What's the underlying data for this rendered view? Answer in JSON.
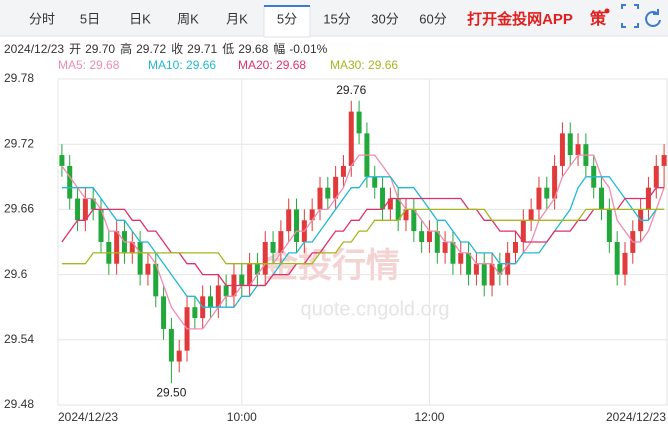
{
  "ui": {
    "tabs": [
      "分时",
      "5日",
      "日K",
      "周K",
      "月K",
      "5分",
      "15分",
      "30分",
      "60分"
    ],
    "active_tab": 5,
    "brand": "打开金投网APP",
    "icon": "策",
    "info": [
      {
        "label": "2024/12/23"
      },
      {
        "label": "开"
      },
      {
        "label": "29.70"
      },
      {
        "label": "高"
      },
      {
        "label": "29.72"
      },
      {
        "label": "收"
      },
      {
        "label": "29.71"
      },
      {
        "label": "低"
      },
      {
        "label": "29.68"
      },
      {
        "label": "幅"
      },
      {
        "label": "-0.01%"
      }
    ],
    "watermark": [
      "金投行情",
      "quote.cngold.org"
    ]
  },
  "chart_data": {
    "type": "candlestick",
    "categories": [
      "2024/12/23",
      null,
      null,
      null,
      null,
      null,
      null,
      null,
      null,
      null,
      null,
      null,
      null,
      null,
      null,
      null,
      null,
      null,
      null,
      null,
      null,
      null,
      null,
      "10:00",
      null,
      null,
      null,
      null,
      null,
      null,
      null,
      null,
      null,
      null,
      null,
      null,
      null,
      null,
      null,
      null,
      null,
      null,
      null,
      null,
      null,
      null,
      null,
      "12:00",
      null,
      null,
      null,
      null,
      null,
      null,
      null,
      null,
      null,
      null,
      null,
      null,
      null,
      null,
      null,
      null,
      null,
      null,
      null,
      null,
      null,
      null,
      null,
      null,
      null,
      null,
      null,
      null,
      null,
      "2024/12/23"
    ],
    "open": [
      29.71,
      29.7,
      29.67,
      29.65,
      29.67,
      29.66,
      29.63,
      29.61,
      29.64,
      29.62,
      29.63,
      29.6,
      29.61,
      29.58,
      29.55,
      29.52,
      29.53,
      29.57,
      29.56,
      29.58,
      29.57,
      29.59,
      29.58,
      29.6,
      29.59,
      29.61,
      29.6,
      29.63,
      29.62,
      29.64,
      29.66,
      29.63,
      29.65,
      29.66,
      29.68,
      29.67,
      29.69,
      29.7,
      29.75,
      29.73,
      29.69,
      29.68,
      29.66,
      29.67,
      29.65,
      29.66,
      29.64,
      29.63,
      29.64,
      29.62,
      29.63,
      29.61,
      29.62,
      29.6,
      29.61,
      29.59,
      29.61,
      29.6,
      29.62,
      29.63,
      29.65,
      29.66,
      29.68,
      29.67,
      29.7,
      29.73,
      29.71,
      29.72,
      29.7,
      29.68,
      29.66,
      29.63,
      29.6,
      29.62,
      29.64,
      29.66,
      29.68,
      29.7
    ],
    "high": [
      29.72,
      29.71,
      29.68,
      29.68,
      29.68,
      29.67,
      29.64,
      29.65,
      29.65,
      29.64,
      29.64,
      29.62,
      29.62,
      29.59,
      29.56,
      29.54,
      29.58,
      29.58,
      29.59,
      29.59,
      29.6,
      29.6,
      29.61,
      29.61,
      29.62,
      29.62,
      29.64,
      29.64,
      29.65,
      29.67,
      29.67,
      29.66,
      29.67,
      29.69,
      29.69,
      29.7,
      29.71,
      29.76,
      29.76,
      29.74,
      29.7,
      29.69,
      29.68,
      29.68,
      29.67,
      29.67,
      29.65,
      29.65,
      29.65,
      29.64,
      29.64,
      29.63,
      29.63,
      29.62,
      29.62,
      29.62,
      29.62,
      29.63,
      29.64,
      29.66,
      29.67,
      29.69,
      29.69,
      29.71,
      29.74,
      29.74,
      29.73,
      29.73,
      29.71,
      29.69,
      29.67,
      29.64,
      29.63,
      29.65,
      29.67,
      29.69,
      29.71,
      29.72
    ],
    "low": [
      29.69,
      29.66,
      29.64,
      29.64,
      29.65,
      29.62,
      29.6,
      29.6,
      29.61,
      29.61,
      29.59,
      29.59,
      29.57,
      29.54,
      29.5,
      29.51,
      29.52,
      29.55,
      29.55,
      29.56,
      29.56,
      29.57,
      29.57,
      29.58,
      29.58,
      29.59,
      29.59,
      29.61,
      29.61,
      29.63,
      29.62,
      29.62,
      29.64,
      29.65,
      29.66,
      29.66,
      29.68,
      29.69,
      29.72,
      29.68,
      29.67,
      29.65,
      29.65,
      29.64,
      29.64,
      29.63,
      29.62,
      29.62,
      29.61,
      29.61,
      29.6,
      29.6,
      29.59,
      29.59,
      29.58,
      29.58,
      29.59,
      29.59,
      29.61,
      29.62,
      29.64,
      29.65,
      29.66,
      29.66,
      29.69,
      29.7,
      29.7,
      29.69,
      29.67,
      29.65,
      29.62,
      29.59,
      29.59,
      29.61,
      29.63,
      29.65,
      29.67,
      29.68
    ],
    "close": [
      29.7,
      29.67,
      29.65,
      29.67,
      29.66,
      29.63,
      29.61,
      29.64,
      29.62,
      29.63,
      29.6,
      29.61,
      29.58,
      29.55,
      29.52,
      29.53,
      29.57,
      29.56,
      29.58,
      29.57,
      29.59,
      29.58,
      29.6,
      29.59,
      29.61,
      29.6,
      29.63,
      29.62,
      29.64,
      29.66,
      29.63,
      29.65,
      29.66,
      29.68,
      29.67,
      29.69,
      29.7,
      29.75,
      29.73,
      29.69,
      29.68,
      29.66,
      29.67,
      29.65,
      29.66,
      29.64,
      29.63,
      29.64,
      29.62,
      29.63,
      29.61,
      29.62,
      29.6,
      29.61,
      29.59,
      29.61,
      29.6,
      29.62,
      29.63,
      29.65,
      29.66,
      29.68,
      29.67,
      29.7,
      29.73,
      29.71,
      29.72,
      29.7,
      29.68,
      29.66,
      29.63,
      29.6,
      29.62,
      29.64,
      29.66,
      29.68,
      29.7,
      29.71
    ],
    "up_color": "#e23a3a",
    "down_color": "#22a83a",
    "high_label": "29.76",
    "low_label": "29.50",
    "series": [
      {
        "name": "MA5: 29.68",
        "color": "#f08cb0",
        "values": [
          29.7,
          29.69,
          29.68,
          29.67,
          29.67,
          29.66,
          29.64,
          29.64,
          29.63,
          29.63,
          29.62,
          29.62,
          29.61,
          29.59,
          29.57,
          29.56,
          29.55,
          29.55,
          29.55,
          29.56,
          29.57,
          29.58,
          29.58,
          29.59,
          29.59,
          29.6,
          29.61,
          29.61,
          29.62,
          29.63,
          29.64,
          29.64,
          29.65,
          29.66,
          29.66,
          29.67,
          29.68,
          29.7,
          29.71,
          29.71,
          29.71,
          29.7,
          29.69,
          29.67,
          29.66,
          29.66,
          29.65,
          29.64,
          29.64,
          29.63,
          29.63,
          29.62,
          29.62,
          29.61,
          29.61,
          29.61,
          29.6,
          29.61,
          29.61,
          29.62,
          29.63,
          29.65,
          29.66,
          29.67,
          29.69,
          29.7,
          29.71,
          29.71,
          29.71,
          29.69,
          29.68,
          29.65,
          29.64,
          29.63,
          29.63,
          29.64,
          29.66,
          29.68
        ]
      },
      {
        "name": "MA10: 29.66",
        "color": "#22b8d6",
        "values": [
          29.68,
          29.68,
          29.68,
          29.68,
          29.68,
          29.67,
          29.66,
          29.65,
          29.65,
          29.64,
          29.63,
          29.63,
          29.62,
          29.61,
          29.6,
          29.59,
          29.58,
          29.58,
          29.57,
          29.57,
          29.57,
          29.57,
          29.57,
          29.58,
          29.58,
          29.59,
          29.59,
          29.6,
          29.61,
          29.62,
          29.62,
          29.63,
          29.63,
          29.64,
          29.65,
          29.66,
          29.67,
          29.68,
          29.68,
          29.69,
          29.69,
          29.69,
          29.69,
          29.68,
          29.68,
          29.68,
          29.67,
          29.66,
          29.65,
          29.65,
          29.64,
          29.63,
          29.63,
          29.62,
          29.62,
          29.62,
          29.61,
          29.61,
          29.61,
          29.62,
          29.62,
          29.62,
          29.63,
          29.64,
          29.65,
          29.66,
          29.68,
          29.69,
          29.69,
          29.69,
          29.69,
          29.68,
          29.67,
          29.66,
          29.65,
          29.65,
          29.66,
          29.66
        ]
      },
      {
        "name": "MA20: 29.68",
        "color": "#e0306a",
        "values": [
          29.63,
          29.64,
          29.65,
          29.65,
          29.66,
          29.66,
          29.66,
          29.66,
          29.66,
          29.65,
          29.65,
          29.64,
          29.64,
          29.63,
          29.62,
          29.62,
          29.61,
          29.61,
          29.6,
          29.6,
          29.6,
          29.59,
          29.59,
          29.59,
          29.59,
          29.59,
          29.59,
          29.6,
          29.6,
          29.6,
          29.61,
          29.61,
          29.62,
          29.62,
          29.63,
          29.64,
          29.64,
          29.65,
          29.65,
          29.66,
          29.66,
          29.66,
          29.67,
          29.67,
          29.67,
          29.67,
          29.67,
          29.67,
          29.67,
          29.67,
          29.67,
          29.67,
          29.66,
          29.66,
          29.65,
          29.65,
          29.64,
          29.64,
          29.64,
          29.63,
          29.63,
          29.63,
          29.63,
          29.64,
          29.64,
          29.64,
          29.65,
          29.65,
          29.66,
          29.66,
          29.66,
          29.66,
          29.67,
          29.67,
          29.67,
          29.67,
          29.68,
          29.68
        ]
      },
      {
        "name": "MA30: 29.66",
        "color": "#a6b61e",
        "values": [
          29.61,
          29.61,
          29.61,
          29.61,
          29.62,
          29.62,
          29.62,
          29.62,
          29.62,
          29.62,
          29.62,
          29.62,
          29.62,
          29.62,
          29.62,
          29.62,
          29.62,
          29.62,
          29.62,
          29.62,
          29.62,
          29.61,
          29.61,
          29.61,
          29.61,
          29.61,
          29.61,
          29.61,
          29.61,
          29.61,
          29.61,
          29.61,
          29.61,
          29.62,
          29.62,
          29.62,
          29.63,
          29.63,
          29.64,
          29.64,
          29.65,
          29.65,
          29.65,
          29.65,
          29.66,
          29.66,
          29.66,
          29.66,
          29.66,
          29.66,
          29.66,
          29.66,
          29.66,
          29.66,
          29.66,
          29.65,
          29.65,
          29.65,
          29.65,
          29.65,
          29.65,
          29.65,
          29.65,
          29.65,
          29.65,
          29.65,
          29.65,
          29.66,
          29.66,
          29.66,
          29.66,
          29.66,
          29.66,
          29.66,
          29.66,
          29.66,
          29.66,
          29.66
        ]
      }
    ],
    "ylim": [
      29.48,
      29.78
    ],
    "yticks": [
      29.48,
      29.54,
      29.6,
      29.66,
      29.72,
      29.78
    ],
    "grid": true
  }
}
